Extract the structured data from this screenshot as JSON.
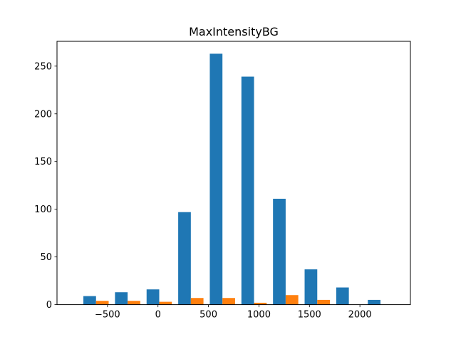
{
  "chart_data": {
    "type": "bar",
    "title": "MaxIntensityBG",
    "xlabel": "",
    "ylabel": "",
    "xlim": [
      -1000,
      2500
    ],
    "ylim": [
      0,
      276
    ],
    "x_ticks": [
      -500,
      0,
      500,
      1000,
      1500,
      2000
    ],
    "x_tick_labels": [
      "−500",
      "0",
      "500",
      "1000",
      "1500",
      "2000"
    ],
    "y_ticks": [
      0,
      50,
      100,
      150,
      200,
      250
    ],
    "y_tick_labels": [
      "0",
      "50",
      "100",
      "150",
      "200",
      "250"
    ],
    "bin_edges": [
      -770,
      -457,
      -144,
      169,
      482,
      795,
      1108,
      1421,
      1734,
      2047,
      2360
    ],
    "grid": false,
    "series": [
      {
        "color": "#1f77b4",
        "values": [
          9,
          13,
          16,
          97,
          263,
          239,
          111,
          37,
          18,
          5
        ]
      },
      {
        "color": "#ff7f0e",
        "values": [
          4,
          4,
          3,
          7,
          7,
          2,
          10,
          5,
          0,
          0
        ]
      }
    ]
  }
}
